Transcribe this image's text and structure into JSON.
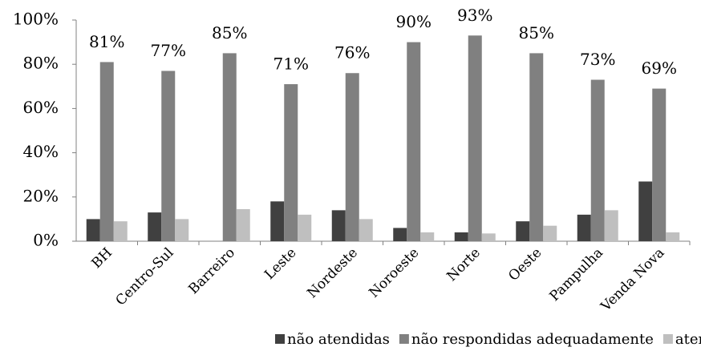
{
  "chart_data": {
    "type": "bar",
    "categories": [
      "BH",
      "Centro-Sul",
      "Barreiro",
      "Leste",
      "Nordeste",
      "Noroeste",
      "Norte",
      "Oeste",
      "Pampulha",
      "Venda Nova"
    ],
    "series": [
      {
        "name": "não atendidas",
        "color": "#404040",
        "values": [
          10,
          13,
          0,
          18,
          14,
          6,
          4,
          9,
          12,
          27
        ]
      },
      {
        "name": "não respondidas adequadamente",
        "color": "#808080",
        "values": [
          81,
          77,
          85,
          71,
          76,
          90,
          93,
          85,
          73,
          69
        ],
        "value_labels": [
          "81%",
          "77%",
          "85%",
          "71%",
          "76%",
          "90%",
          "93%",
          "85%",
          "73%",
          "69%"
        ]
      },
      {
        "name": "atendidas",
        "color": "#bfbfbf",
        "values": [
          9,
          10,
          14.5,
          12,
          10,
          4,
          3.5,
          7,
          14,
          4
        ]
      }
    ],
    "ylim": [
      0,
      100
    ],
    "yticks": [
      {
        "value": 0,
        "label": "0%"
      },
      {
        "value": 20,
        "label": "20%"
      },
      {
        "value": 40,
        "label": "40%"
      },
      {
        "value": 60,
        "label": "60%"
      },
      {
        "value": 80,
        "label": "80%"
      },
      {
        "value": 100,
        "label": "100%"
      }
    ],
    "legend": "bottom"
  }
}
